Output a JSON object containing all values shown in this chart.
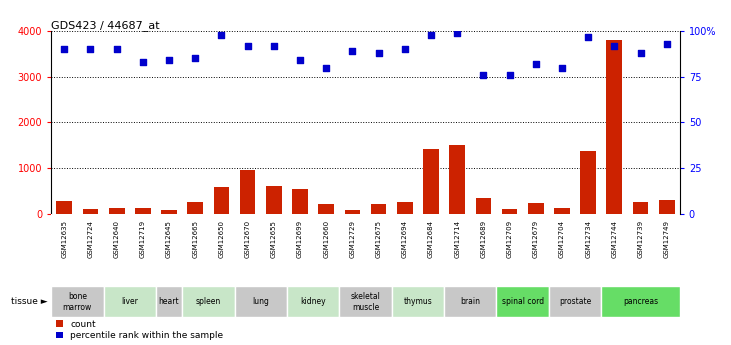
{
  "title": "GDS423 / 44687_at",
  "samples": [
    "GSM12635",
    "GSM12724",
    "GSM12640",
    "GSM12719",
    "GSM12645",
    "GSM12665",
    "GSM12650",
    "GSM12670",
    "GSM12655",
    "GSM12699",
    "GSM12660",
    "GSM12729",
    "GSM12675",
    "GSM12694",
    "GSM12684",
    "GSM12714",
    "GSM12689",
    "GSM12709",
    "GSM12679",
    "GSM12704",
    "GSM12734",
    "GSM12744",
    "GSM12739",
    "GSM12749"
  ],
  "counts": [
    280,
    100,
    140,
    130,
    90,
    250,
    590,
    950,
    620,
    550,
    210,
    80,
    220,
    270,
    1430,
    1500,
    350,
    100,
    230,
    120,
    1380,
    3800,
    260,
    310
  ],
  "percentiles": [
    90,
    90,
    90,
    83,
    84,
    85,
    98,
    92,
    92,
    84,
    80,
    89,
    88,
    90,
    98,
    99,
    76,
    76,
    82,
    80,
    97,
    92,
    88,
    93
  ],
  "tissues": [
    {
      "name": "bone\nmarrow",
      "start": 0,
      "end": 2,
      "color": "#c8c8c8"
    },
    {
      "name": "liver",
      "start": 2,
      "end": 4,
      "color": "#c8e6c8"
    },
    {
      "name": "heart",
      "start": 4,
      "end": 5,
      "color": "#c8c8c8"
    },
    {
      "name": "spleen",
      "start": 5,
      "end": 7,
      "color": "#c8e6c8"
    },
    {
      "name": "lung",
      "start": 7,
      "end": 9,
      "color": "#c8c8c8"
    },
    {
      "name": "kidney",
      "start": 9,
      "end": 11,
      "color": "#c8e6c8"
    },
    {
      "name": "skeletal\nmuscle",
      "start": 11,
      "end": 13,
      "color": "#c8c8c8"
    },
    {
      "name": "thymus",
      "start": 13,
      "end": 15,
      "color": "#c8e6c8"
    },
    {
      "name": "brain",
      "start": 15,
      "end": 17,
      "color": "#c8c8c8"
    },
    {
      "name": "spinal cord",
      "start": 17,
      "end": 19,
      "color": "#66dd66"
    },
    {
      "name": "prostate",
      "start": 19,
      "end": 21,
      "color": "#c8c8c8"
    },
    {
      "name": "pancreas",
      "start": 21,
      "end": 24,
      "color": "#66dd66"
    }
  ],
  "ylim_left": [
    0,
    4000
  ],
  "ylim_right": [
    0,
    100
  ],
  "yticks_left": [
    0,
    1000,
    2000,
    3000,
    4000
  ],
  "yticks_right": [
    0,
    25,
    50,
    75,
    100
  ],
  "bar_color": "#cc2200",
  "dot_color": "#0000cc",
  "background_color": "#ffffff",
  "gsm_bg_color": "#cccccc"
}
